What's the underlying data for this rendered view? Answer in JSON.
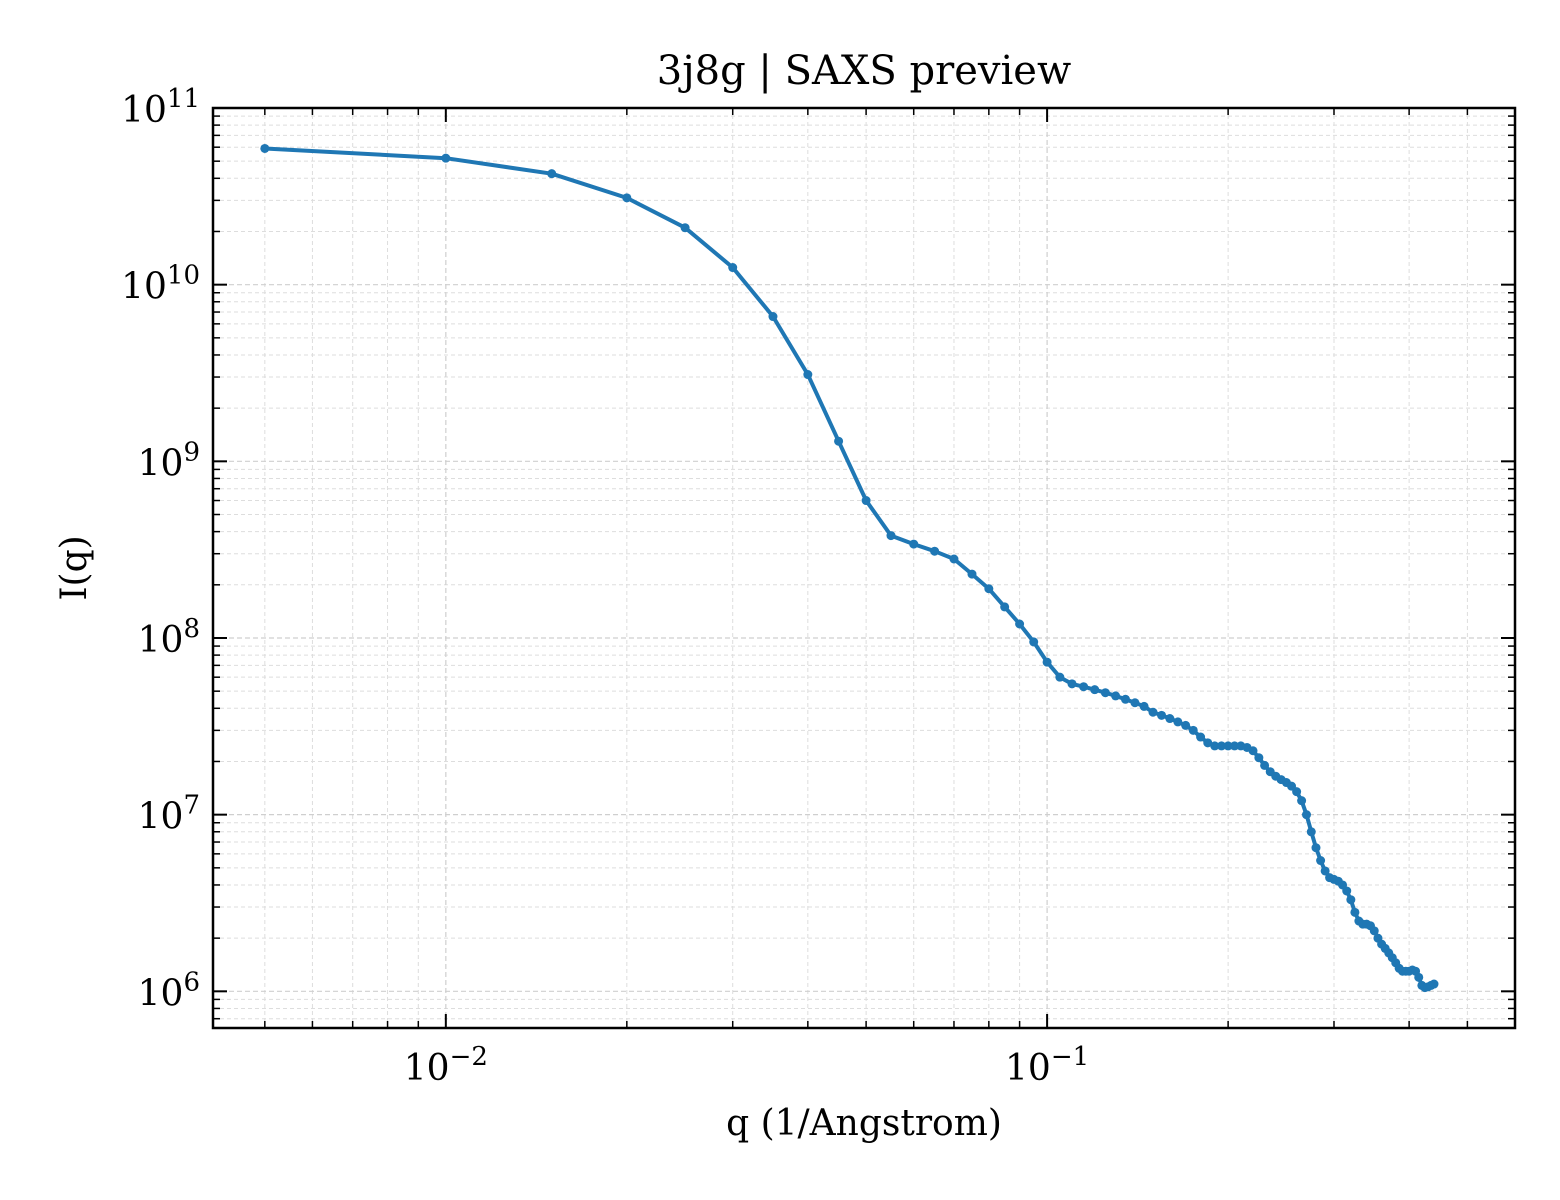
{
  "chart_data": {
    "type": "line",
    "title": "3j8g | SAXS preview",
    "xlabel": "q (1/Angstrom)",
    "ylabel": "I(q)",
    "xscale": "log",
    "yscale": "log",
    "xlim": [
      0.0041,
      0.6
    ],
    "ylim": [
      620000,
      100000000000
    ],
    "grid": true,
    "legend": "none",
    "x_major_ticks": [
      {
        "value": 0.01,
        "base": "10",
        "exp": "−2"
      },
      {
        "value": 0.1,
        "base": "10",
        "exp": "−1"
      }
    ],
    "y_major_ticks": [
      {
        "value": 1000000,
        "base": "10",
        "exp": "6"
      },
      {
        "value": 10000000,
        "base": "10",
        "exp": "7"
      },
      {
        "value": 100000000,
        "base": "10",
        "exp": "8"
      },
      {
        "value": 1000000000,
        "base": "10",
        "exp": "9"
      },
      {
        "value": 10000000000,
        "base": "10",
        "exp": "10"
      },
      {
        "value": 100000000000,
        "base": "10",
        "exp": "11"
      }
    ],
    "series": [
      {
        "color": "#1f77b4",
        "points": [
          [
            0.005,
            59000000000.0
          ],
          [
            0.01,
            52000000000.0
          ],
          [
            0.015,
            42500000000.0
          ],
          [
            0.02,
            31000000000.0
          ],
          [
            0.025,
            21000000000.0
          ],
          [
            0.03,
            12500000000.0
          ],
          [
            0.035,
            6600000000.0
          ],
          [
            0.04,
            3100000000.0
          ],
          [
            0.045,
            1300000000.0
          ],
          [
            0.05,
            600000000.0
          ],
          [
            0.055,
            380000000.0
          ],
          [
            0.06,
            340000000.0
          ],
          [
            0.065,
            310000000.0
          ],
          [
            0.07,
            280000000.0
          ],
          [
            0.075,
            230000000.0
          ],
          [
            0.08,
            190000000.0
          ],
          [
            0.085,
            150000000.0
          ],
          [
            0.09,
            120000000.0
          ],
          [
            0.095,
            95000000.0
          ],
          [
            0.1,
            73000000.0
          ],
          [
            0.105,
            60000000.0
          ],
          [
            0.11,
            55000000.0
          ],
          [
            0.115,
            53000000.0
          ],
          [
            0.12,
            51000000.0
          ],
          [
            0.125,
            49000000.0
          ],
          [
            0.13,
            47000000.0
          ],
          [
            0.135,
            45000000.0
          ],
          [
            0.14,
            43000000.0
          ],
          [
            0.145,
            41000000.0
          ],
          [
            0.15,
            38000000.0
          ],
          [
            0.155,
            36500000.0
          ],
          [
            0.16,
            35000000.0
          ],
          [
            0.165,
            33500000.0
          ],
          [
            0.17,
            32000000.0
          ],
          [
            0.175,
            30000000.0
          ],
          [
            0.18,
            27500000.0
          ],
          [
            0.185,
            25500000.0
          ],
          [
            0.19,
            24500000.0
          ],
          [
            0.195,
            24500000.0
          ],
          [
            0.2,
            24500000.0
          ],
          [
            0.205,
            24500000.0
          ],
          [
            0.21,
            24500000.0
          ],
          [
            0.215,
            24000000.0
          ],
          [
            0.22,
            23000000.0
          ],
          [
            0.225,
            21000000.0
          ],
          [
            0.23,
            19000000.0
          ],
          [
            0.235,
            17500000.0
          ],
          [
            0.24,
            16500000.0
          ],
          [
            0.245,
            15800000.0
          ],
          [
            0.25,
            15200000.0
          ],
          [
            0.255,
            14500000.0
          ],
          [
            0.26,
            13500000.0
          ],
          [
            0.265,
            12000000.0
          ],
          [
            0.27,
            10000000.0
          ],
          [
            0.275,
            8000000.0
          ],
          [
            0.28,
            6500000.0
          ],
          [
            0.285,
            5500000.0
          ],
          [
            0.29,
            4800000.0
          ],
          [
            0.295,
            4400000.0
          ],
          [
            0.3,
            4300000.0
          ],
          [
            0.305,
            4200000.0
          ],
          [
            0.31,
            4000000.0
          ],
          [
            0.315,
            3700000.0
          ],
          [
            0.32,
            3300000.0
          ],
          [
            0.325,
            2800000.0
          ],
          [
            0.33,
            2500000.0
          ],
          [
            0.335,
            2400000.0
          ],
          [
            0.34,
            2400000.0
          ],
          [
            0.345,
            2350000.0
          ],
          [
            0.35,
            2200000.0
          ],
          [
            0.355,
            2000000.0
          ],
          [
            0.36,
            1850000.0
          ],
          [
            0.365,
            1750000.0
          ],
          [
            0.37,
            1650000.0
          ],
          [
            0.375,
            1550000.0
          ],
          [
            0.38,
            1450000.0
          ],
          [
            0.385,
            1350000.0
          ],
          [
            0.39,
            1300000.0
          ],
          [
            0.395,
            1300000.0
          ],
          [
            0.4,
            1300000.0
          ],
          [
            0.405,
            1320000.0
          ],
          [
            0.41,
            1300000.0
          ],
          [
            0.415,
            1200000.0
          ],
          [
            0.42,
            1080000.0
          ],
          [
            0.425,
            1050000.0
          ],
          [
            0.43,
            1060000.0
          ],
          [
            0.435,
            1080000.0
          ],
          [
            0.44,
            1100000.0
          ]
        ]
      }
    ]
  }
}
